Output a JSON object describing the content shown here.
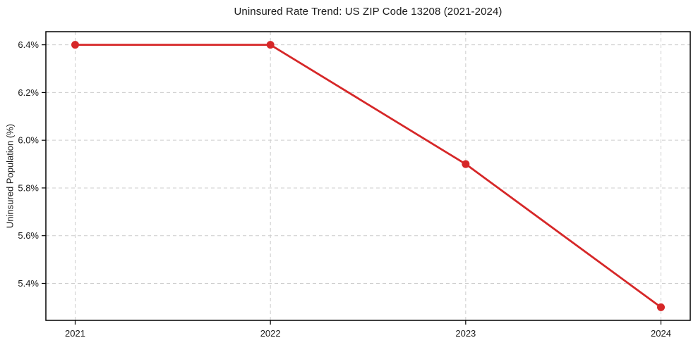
{
  "chart_data": {
    "type": "line",
    "title": "Uninsured Rate Trend: US ZIP Code 13208 (2021-2024)",
    "xlabel": "",
    "ylabel": "Uninsured Population (%)",
    "x": [
      2021,
      2022,
      2023,
      2024
    ],
    "x_tick_labels": [
      "2021",
      "2022",
      "2023",
      "2024"
    ],
    "series": [
      {
        "name": "Uninsured Rate",
        "values": [
          6.4,
          6.4,
          5.9,
          5.3
        ]
      }
    ],
    "y_ticks": [
      5.4,
      5.6,
      5.8,
      6.0,
      6.2,
      6.4
    ],
    "y_tick_labels": [
      "5.4%",
      "5.6%",
      "5.8%",
      "6.0%",
      "6.2%",
      "6.4%"
    ],
    "xlim": [
      2020.85,
      2024.15
    ],
    "ylim": [
      5.245,
      6.455
    ],
    "grid": true,
    "legend": "none",
    "colors": {
      "line": "#d62728",
      "marker": "#d62728",
      "grid": "#cccccc",
      "spine": "#000000",
      "text": "#1a1a1a",
      "background": "#ffffff"
    }
  }
}
